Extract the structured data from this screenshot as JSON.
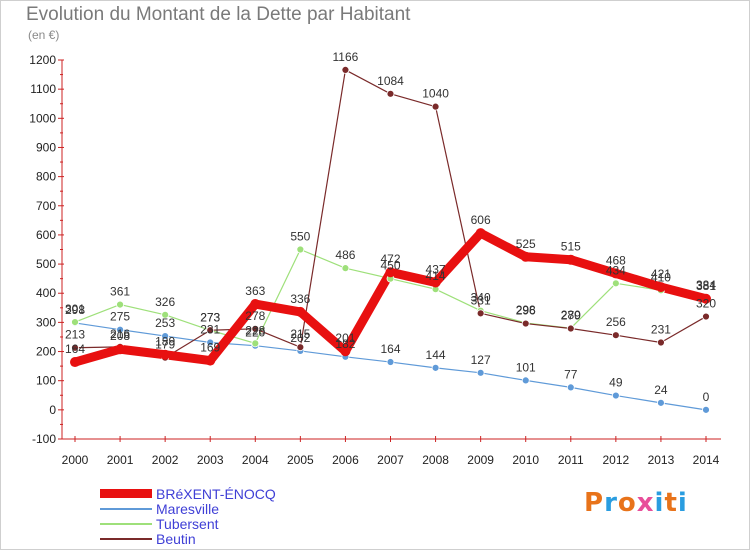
{
  "title": "Evolution du Montant de la Dette par Habitant",
  "unit": "(en €)",
  "logo": {
    "text": "Proxiti",
    "colors": [
      "#e8731a",
      "#2a9de0",
      "#e8731a",
      "#e84e9a",
      "#2a9de0",
      "#e8731a",
      "#2a9de0"
    ]
  },
  "chart_data": {
    "type": "line",
    "title": "Evolution du Montant de la Dette par Habitant",
    "ylabel": "(en €)",
    "ylim": [
      -100,
      1200
    ],
    "yticks": [
      -100,
      0,
      100,
      200,
      300,
      400,
      500,
      600,
      700,
      800,
      900,
      1000,
      1100,
      1200
    ],
    "grid": false,
    "legend_position": "bottom-left",
    "x": [
      2000,
      2001,
      2002,
      2003,
      2004,
      2005,
      2006,
      2007,
      2008,
      2009,
      2010,
      2011,
      2012,
      2013,
      2014
    ],
    "series": [
      {
        "name": "BRéXENT-ÉNOCQ",
        "color": "#e81010",
        "values": [
          164,
          208,
          189,
          169,
          363,
          336,
          201,
          472,
          437,
          606,
          525,
          515,
          468,
          421,
          381
        ]
      },
      {
        "name": "Maresville",
        "color": "#5f9ad8",
        "values": [
          298,
          275,
          253,
          231,
          220,
          202,
          182,
          164,
          144,
          127,
          101,
          77,
          49,
          24,
          0
        ]
      },
      {
        "name": "Tubersent",
        "color": "#9ee07a",
        "values": [
          301,
          361,
          326,
          273,
          228,
          550,
          486,
          450,
          414,
          340,
          298,
          280,
          434,
          410,
          384
        ]
      },
      {
        "name": "Beutin",
        "color": "#7a2a2a",
        "values": [
          213,
          216,
          179,
          273,
          278,
          215,
          1166,
          1084,
          1040,
          331,
          296,
          279,
          256,
          231,
          320
        ]
      }
    ]
  }
}
